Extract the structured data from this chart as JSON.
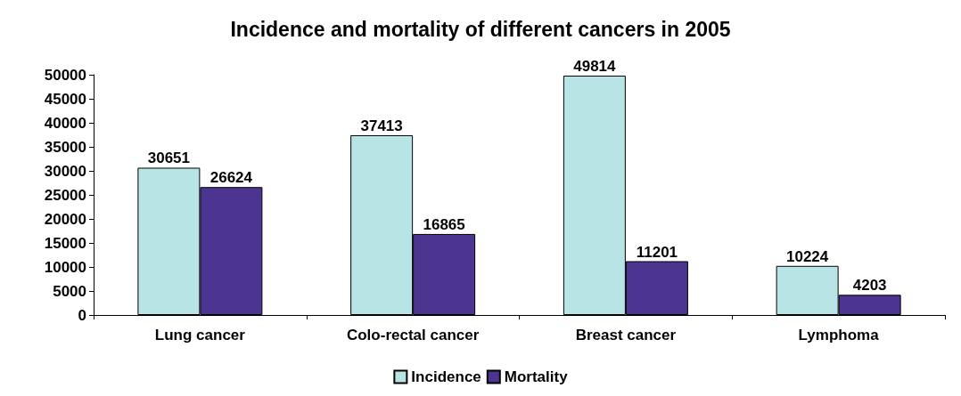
{
  "chart_data": {
    "type": "bar",
    "title": "Incidence and mortality of different cancers in 2005",
    "categories": [
      "Lung cancer",
      "Colo-rectal cancer",
      "Breast cancer",
      "Lymphoma"
    ],
    "series": [
      {
        "name": "Incidence",
        "color": "#b8e4e6",
        "values": [
          30651,
          37413,
          49814,
          10224
        ]
      },
      {
        "name": "Mortality",
        "color": "#4b3591",
        "values": [
          26624,
          16865,
          11201,
          4203
        ]
      }
    ],
    "ylim": [
      0,
      50000
    ],
    "yticks": [
      0,
      5000,
      10000,
      15000,
      20000,
      25000,
      30000,
      35000,
      40000,
      45000,
      50000
    ],
    "grid": false,
    "legend": "bottom",
    "data_labels": true
  }
}
